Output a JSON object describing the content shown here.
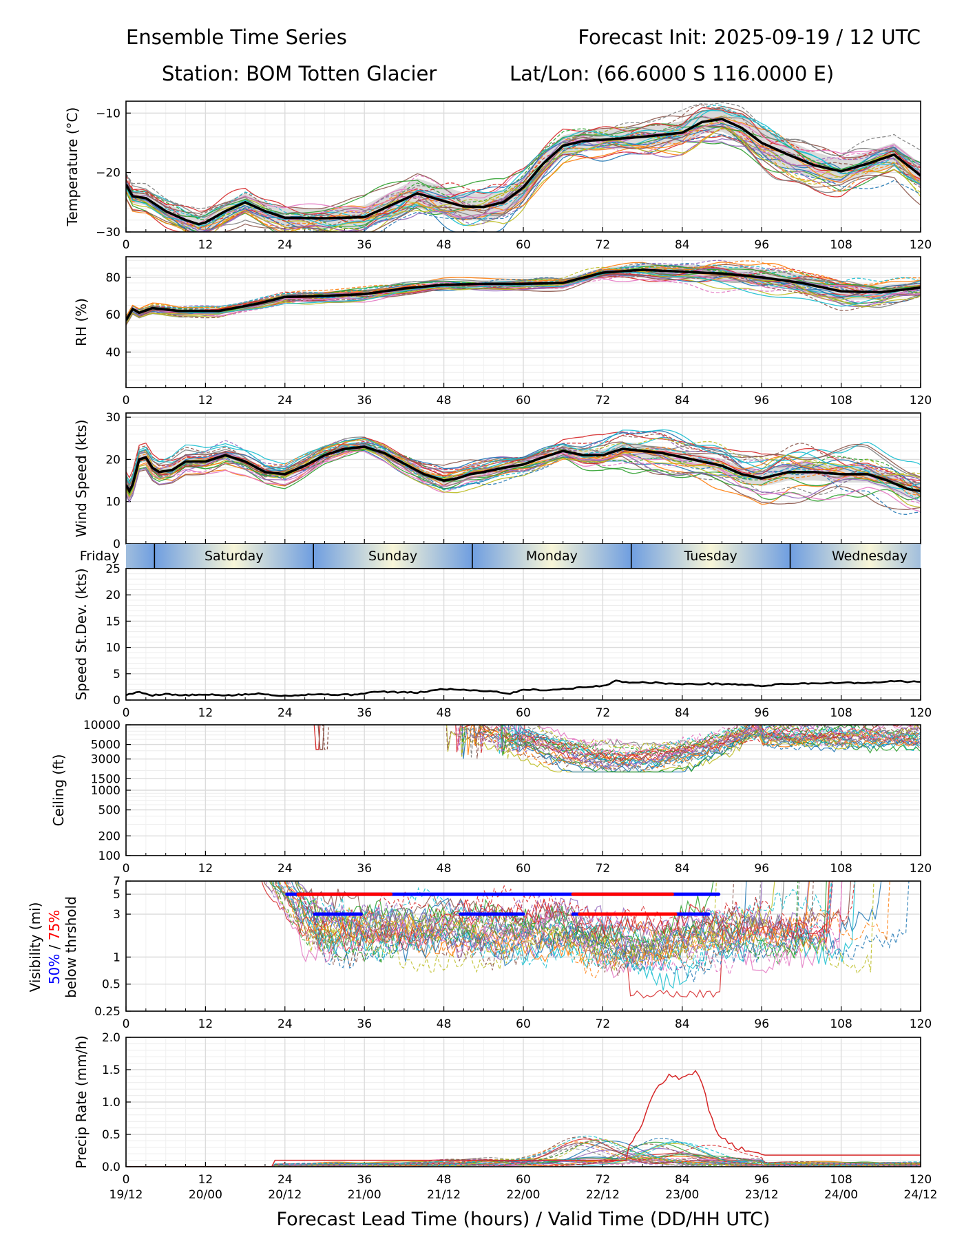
{
  "header": {
    "title_left": "Ensemble Time Series",
    "title_right": "Forecast Init: 2025-09-19 / 12 UTC",
    "station": "Station: BOM Totten Glacier",
    "latlon": "Lat/Lon: (66.6000 S 116.0000 E)"
  },
  "colors": {
    "members": [
      "#1f77b4",
      "#ff7f0e",
      "#2ca02c",
      "#d62728",
      "#9467bd",
      "#8c564b",
      "#e377c2",
      "#7f7f7f",
      "#bcbd22",
      "#17becf"
    ],
    "mean": "#000000",
    "spread": "#cccccc",
    "day_band_blue": "#6f9ee0",
    "day_band_cream": "#f8f6d8",
    "prob50": "#0000ff",
    "prob75": "#ff0000"
  },
  "x_axis": {
    "range": [
      0,
      120
    ],
    "ticks": [
      0,
      12,
      24,
      36,
      48,
      60,
      72,
      84,
      96,
      108,
      120
    ],
    "tick_labels": [
      "0",
      "12",
      "24",
      "36",
      "48",
      "60",
      "72",
      "84",
      "96",
      "108",
      "120"
    ],
    "valid_labels": [
      "19/12",
      "20/00",
      "20/12",
      "21/00",
      "21/12",
      "22/00",
      "22/12",
      "23/00",
      "23/12",
      "24/00",
      "24/12"
    ],
    "xlabel": "Forecast Lead Time (hours) / Valid Time (DD/HH UTC)"
  },
  "day_bar": {
    "labels": [
      "Friday",
      "Saturday",
      "Sunday",
      "Monday",
      "Tuesday",
      "Wednesday"
    ],
    "centers": [
      -4,
      16.3,
      40.3,
      64.3,
      88.3,
      112.3
    ],
    "boundaries": [
      4.3,
      28.3,
      52.3,
      76.3,
      100.3
    ]
  },
  "chart_data": [
    {
      "type": "line",
      "id": "temperature",
      "ylabel": "Temperature (°C)",
      "ylim": [
        -30,
        -8
      ],
      "yticks": [
        -30,
        -20,
        -10
      ],
      "ytick_labels": [
        "−30",
        "−20",
        "−10"
      ],
      "ensemble_members": 30,
      "mean": {
        "x": [
          0,
          1,
          3,
          6,
          9,
          11,
          12,
          15,
          18,
          21,
          24,
          30,
          36,
          40,
          44,
          48,
          51,
          54,
          57,
          60,
          63,
          66,
          69,
          72,
          78,
          84,
          87,
          90,
          93,
          96,
          100,
          104,
          108,
          112,
          116,
          120
        ],
        "y": [
          -22,
          -24,
          -24.3,
          -26.5,
          -28,
          -28.7,
          -28.4,
          -26.5,
          -25,
          -26.5,
          -27.6,
          -27.7,
          -27.5,
          -25.5,
          -23.5,
          -24.8,
          -25.7,
          -25.8,
          -25,
          -22.5,
          -18.5,
          -15.5,
          -14.7,
          -14.5,
          -14,
          -13.3,
          -11.5,
          -11,
          -12.5,
          -15,
          -17,
          -18.8,
          -19.8,
          -18.5,
          -17,
          -20.5
        ]
      },
      "spread": [
        2.2,
        3,
        3,
        3.5,
        5,
        4.5,
        3.5,
        3.5,
        4,
        5,
        4,
        4
      ]
    },
    {
      "type": "line",
      "id": "rh",
      "ylabel": "RH (%)",
      "ylim": [
        21,
        91
      ],
      "yticks": [
        40,
        60,
        80
      ],
      "ytick_labels": [
        "40",
        "60",
        "80"
      ],
      "ensemble_members": 30,
      "mean": {
        "x": [
          0,
          1,
          2,
          4,
          8,
          14,
          20,
          24,
          30,
          36,
          42,
          48,
          54,
          60,
          66,
          72,
          78,
          84,
          90,
          96,
          102,
          108,
          114,
          120
        ],
        "y": [
          57,
          63,
          61,
          63.5,
          62,
          62,
          66,
          69.5,
          70,
          71,
          74,
          76,
          76.5,
          76.5,
          77,
          82.5,
          84,
          83,
          82,
          80,
          77,
          72.5,
          72,
          74.5
        ]
      },
      "spread": [
        3,
        3,
        3,
        4,
        4,
        4,
        4,
        6,
        8,
        9,
        9,
        6
      ]
    },
    {
      "type": "line",
      "id": "wind_speed",
      "ylabel": "Wind Speed (kts)",
      "ylim": [
        0,
        31
      ],
      "yticks": [
        0,
        10,
        20,
        30
      ],
      "ytick_labels": [
        "0",
        "10",
        "20",
        "30"
      ],
      "ensemble_members": 30,
      "mean": {
        "x": [
          0,
          0.5,
          1,
          2,
          3,
          4,
          5,
          7,
          9,
          12,
          15,
          18,
          21,
          24,
          27,
          30,
          33,
          36,
          39,
          42,
          45,
          48,
          50,
          52,
          54,
          57,
          60,
          63,
          66,
          69,
          72,
          75,
          78,
          81,
          84,
          87,
          90,
          93,
          96,
          100,
          104,
          108,
          112,
          115,
          118,
          120
        ],
        "y": [
          14,
          12.5,
          14,
          20,
          20.5,
          18,
          17,
          17.5,
          19.5,
          19.5,
          21,
          19.5,
          17,
          16.5,
          18.5,
          21,
          22.5,
          23,
          21.5,
          19,
          16.5,
          15,
          15.5,
          16.5,
          17,
          18,
          18.8,
          20.5,
          22,
          21,
          21,
          22.5,
          22,
          21.5,
          20.5,
          19.5,
          18.5,
          16.5,
          15.5,
          17,
          17,
          16.5,
          16.5,
          15,
          13,
          12.5
        ]
      },
      "spread": [
        2,
        2,
        2,
        2,
        2,
        2,
        2,
        3,
        3,
        4,
        4,
        4
      ]
    },
    {
      "type": "line",
      "id": "speed_stdev",
      "ylabel": "Speed St.Dev. (kts)",
      "ylim": [
        0,
        25
      ],
      "yticks": [
        0,
        5,
        10,
        15,
        20,
        25
      ],
      "ytick_labels": [
        "0",
        "5",
        "10",
        "15",
        "20",
        "25"
      ],
      "mean": {
        "x": [
          0,
          2,
          4,
          6,
          8,
          12,
          16,
          20,
          24,
          28,
          34,
          38,
          44,
          48,
          52,
          56,
          58,
          60,
          64,
          68,
          72,
          74,
          76,
          80,
          84,
          88,
          92,
          96,
          100,
          104,
          108,
          112,
          116,
          120
        ],
        "y": [
          1,
          1.5,
          0.9,
          1.2,
          0.9,
          1,
          0.9,
          1.2,
          0.8,
          1.1,
          1,
          1.6,
          1.4,
          2.1,
          1.9,
          1.6,
          1.2,
          2,
          1.9,
          2.3,
          2.7,
          3.6,
          3.4,
          3.3,
          3,
          3.1,
          3,
          2.7,
          3.1,
          3.2,
          3.3,
          3.2,
          3.6,
          3.4
        ]
      }
    },
    {
      "type": "line",
      "id": "ceiling",
      "ylabel": "Ceiling (ft)",
      "yscale": "log",
      "ylim": [
        100,
        10000
      ],
      "yticks": [
        100,
        200,
        500,
        1000,
        1500,
        3000,
        5000,
        10000
      ],
      "ytick_labels": [
        "100",
        "200",
        "500",
        "1000",
        "1500",
        "3000",
        "5000",
        "10000"
      ],
      "ensemble_members": 30,
      "active_window_hours": [
        48,
        120
      ],
      "minimum_ft": 1900
    },
    {
      "type": "line",
      "id": "visibility",
      "ylabel": "Visibility (mi)",
      "ylabel_prob_50": "50%",
      "ylabel_sep": " / ",
      "ylabel_prob_75": "75%",
      "ylabel_suffix": "below thrshold",
      "yscale": "log",
      "ylim": [
        0.25,
        7
      ],
      "yticks": [
        0.25,
        0.5,
        1,
        3,
        5,
        7
      ],
      "ytick_labels": [
        "0.25",
        "0.5",
        "1",
        "3",
        "5",
        "7"
      ],
      "ensemble_members": 30,
      "probability_bars": [
        {
          "threshold_mi": 5,
          "level": "50%",
          "start": 24.3,
          "end": 89.5
        },
        {
          "threshold_mi": 5,
          "level": "75%",
          "start": 26,
          "end": 40
        },
        {
          "threshold_mi": 5,
          "level": "75%",
          "start": 67.5,
          "end": 82.5
        },
        {
          "threshold_mi": 3,
          "level": "50%",
          "start": 28.5,
          "end": 35.5
        },
        {
          "threshold_mi": 3,
          "level": "50%",
          "start": 50.5,
          "end": 60
        },
        {
          "threshold_mi": 3,
          "level": "50%",
          "start": 67.5,
          "end": 88
        },
        {
          "threshold_mi": 3,
          "level": "75%",
          "start": 68.5,
          "end": 83
        }
      ]
    },
    {
      "type": "line",
      "id": "precip_rate",
      "ylabel": "Precip Rate (mm/h)",
      "ylim": [
        0,
        2
      ],
      "yticks": [
        0,
        0.5,
        1,
        1.5,
        2
      ],
      "ytick_labels": [
        "0.0",
        "0.5",
        "1.0",
        "1.5",
        "2.0"
      ],
      "ensemble_members": 30,
      "peak_member": {
        "x": [
          76,
          78,
          80,
          82,
          84,
          85,
          86,
          87,
          88,
          89,
          90,
          92,
          96
        ],
        "y": [
          0.3,
          0.7,
          1.2,
          1.4,
          1.35,
          1.4,
          1.52,
          1.3,
          0.9,
          0.6,
          0.45,
          0.3,
          0.2
        ]
      }
    }
  ]
}
